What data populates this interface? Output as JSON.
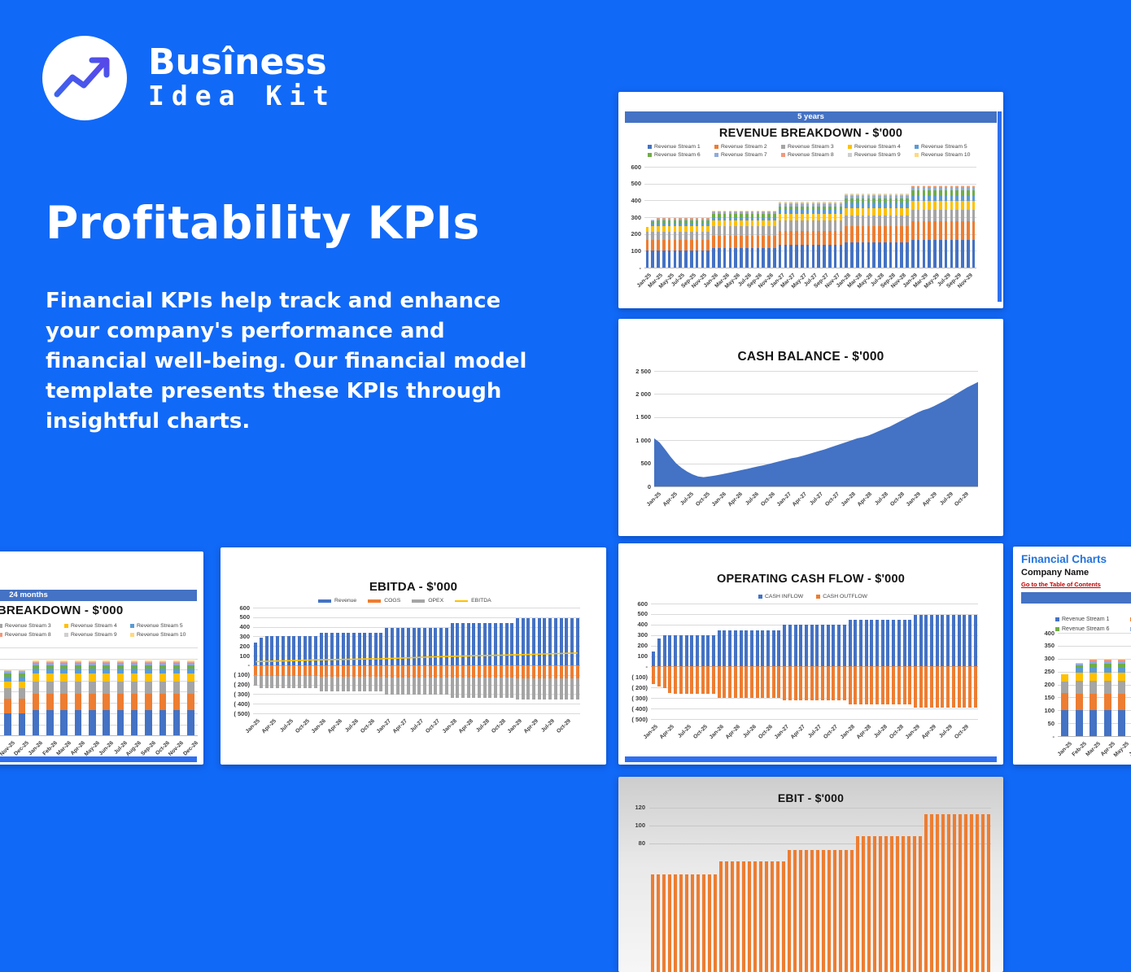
{
  "brand": {
    "line1": "Busîness",
    "line2": "Idea Kit"
  },
  "hero": {
    "title": "Profitability KPIs",
    "description": "Financial KPIs help track and enhance your company's performance and financial well-being. Our financial model template presents these KPIs through insightful charts."
  },
  "colors": {
    "background": "#1169F7",
    "excel_header_bar": "#4472C4",
    "edge_strip": "#2E6FF0",
    "stream_colors": [
      "#4472C4",
      "#ED7D31",
      "#A5A5A5",
      "#FFC000",
      "#5B9BD5",
      "#70AD47",
      "#8FAADC",
      "#F1997B",
      "#CFCFCF",
      "#FFD980"
    ],
    "inflow": "#4472C4",
    "outflow": "#ED7D31",
    "area_fill": "#4472C4",
    "ebitda_line": "#FFC000",
    "ebit_bar": "#ED7D31"
  },
  "streams": [
    "Revenue Stream 1",
    "Revenue Stream 2",
    "Revenue Stream 3",
    "Revenue Stream 4",
    "Revenue Stream 5",
    "Revenue Stream 6",
    "Revenue Stream 7",
    "Revenue Stream 8",
    "Revenue Stream 9",
    "Revenue Stream 10"
  ],
  "cards": {
    "revenue_5y": {
      "header": "5 years",
      "title": "REVENUE BREAKDOWN - $'000"
    },
    "revenue_24m": {
      "header": "24 months",
      "title": "REVENUE BREAKDOWN - $'000"
    },
    "cash_balance": {
      "title": "CASH BALANCE - $'000"
    },
    "ebitda": {
      "title": "EBITDA - $'000"
    },
    "ocf": {
      "title": "OPERATING CASH FLOW - $'000"
    },
    "ebit": {
      "title": "EBIT - $'000"
    },
    "financial_charts": {
      "sheet_title": "Financial Charts",
      "company": "Company Name",
      "link": "Go to the Table of Contents"
    }
  },
  "chart_data": {
    "revenue_5y": {
      "type": "bar",
      "subtype": "stacked",
      "title": "REVENUE BREAKDOWN - $'000",
      "period_header": "5 years",
      "count": 60,
      "ylim": [
        0,
        600
      ],
      "y_ticks": [
        "600",
        "500",
        "400",
        "300",
        "200",
        "100",
        "-"
      ],
      "x_ticks": [
        "Jan-25",
        "Mar-25",
        "May-25",
        "Jul-25",
        "Sep-25",
        "Nov-25",
        "Jan-26",
        "Mar-26",
        "May-26",
        "Jul-26",
        "Sep-26",
        "Nov-26",
        "Jan-27",
        "Mar-27",
        "May-27",
        "Jul-27",
        "Sep-27",
        "Nov-27",
        "Jan-28",
        "Mar-28",
        "May-28",
        "Jul-28",
        "Sep-28",
        "Nov-28",
        "Jan-29",
        "Mar-29",
        "May-29",
        "Jul-29",
        "Sep-29",
        "Nov-29"
      ],
      "tick_every": 2,
      "stacks_by_year": {
        "2025": [
          100,
          65,
          50,
          30,
          20,
          15,
          10,
          5,
          3,
          2
        ],
        "2026": [
          115,
          75,
          55,
          35,
          22,
          16,
          11,
          6,
          3,
          2
        ],
        "2027": [
          135,
          85,
          60,
          40,
          25,
          20,
          14,
          6,
          3,
          2
        ],
        "2028": [
          150,
          95,
          65,
          45,
          30,
          25,
          18,
          7,
          3,
          2
        ],
        "2029": [
          165,
          110,
          70,
          50,
          35,
          28,
          20,
          7,
          3,
          2
        ]
      },
      "overrides": {
        "0": [
          100,
          67,
          45,
          28,
          0,
          0,
          0,
          0,
          0,
          0
        ],
        "1": [
          100,
          65,
          50,
          30,
          20,
          10,
          6,
          3,
          1,
          0
        ]
      },
      "legend_position": "top"
    },
    "revenue_24m": {
      "type": "bar",
      "subtype": "stacked",
      "title": "REVENUE BREAKDOWN - $'000",
      "period_header": "24 months",
      "count": 24,
      "ylim": [
        0,
        400
      ],
      "x_ticks": [
        "Jan-25",
        "Feb-25",
        "Mar-25",
        "Apr-25",
        "May-25",
        "Jun-25",
        "Jul-25",
        "Aug-25",
        "Sep-25",
        "Oct-25",
        "Nov-25",
        "Dec-25",
        "Jan-26",
        "Feb-26",
        "Mar-26",
        "Apr-26",
        "May-26",
        "Jun-26",
        "Jul-26",
        "Aug-26",
        "Sep-26",
        "Oct-26",
        "Nov-26",
        "Dec-26"
      ],
      "tick_every": 1,
      "stacks_by_year": {
        "2025": [
          100,
          65,
          50,
          30,
          20,
          15,
          10,
          5,
          3,
          2
        ],
        "2026": [
          115,
          75,
          55,
          35,
          22,
          16,
          11,
          6,
          3,
          2
        ]
      },
      "overrides": {
        "0": [
          100,
          67,
          45,
          28,
          0,
          0,
          0,
          0,
          0,
          0
        ],
        "1": [
          100,
          65,
          50,
          30,
          20,
          10,
          6,
          3,
          1,
          0
        ]
      }
    },
    "financial_charts_24m": {
      "type": "bar",
      "subtype": "stacked",
      "count": 24,
      "ylim": [
        0,
        400
      ],
      "y_ticks": [
        "400",
        "350",
        "300",
        "250",
        "200",
        "150",
        "100",
        "50",
        "-"
      ],
      "x_ticks": [
        "Jan-25",
        "Feb-25",
        "Mar-25",
        "Apr-25",
        "May-25",
        "Jun-25",
        "Jul-25",
        "Aug-25",
        "Sep-25",
        "Oct-25",
        "Nov-25",
        "Dec-25",
        "Jan-26",
        "Feb-26",
        "Mar-26",
        "Apr-26",
        "May-26",
        "Jun-26",
        "Jul-26",
        "Aug-26",
        "Sep-26",
        "Oct-26",
        "Nov-26",
        "Dec-26"
      ],
      "tick_every": 1,
      "stacks_by_year": {
        "2025": [
          100,
          65,
          50,
          30,
          20,
          15,
          10,
          5,
          3,
          2
        ],
        "2026": [
          115,
          75,
          55,
          35,
          22,
          16,
          11,
          6,
          3,
          2
        ]
      },
      "overrides": {
        "0": [
          100,
          67,
          45,
          28,
          0,
          0,
          0,
          0,
          0,
          0
        ],
        "1": [
          100,
          65,
          50,
          30,
          20,
          10,
          6,
          3,
          1,
          0
        ]
      }
    },
    "cash_balance": {
      "type": "area",
      "title": "CASH BALANCE - $'000",
      "ylim": [
        0,
        2500
      ],
      "y_ticks": [
        "2 500",
        "2 000",
        "1 500",
        "1 000",
        "500",
        "0"
      ],
      "x_ticks": [
        "Jan-25",
        "Apr-25",
        "Jul-25",
        "Oct-25",
        "Jan-26",
        "Apr-26",
        "Jul-26",
        "Oct-26",
        "Jan-27",
        "Apr-27",
        "Jul-27",
        "Oct-27",
        "Jan-28",
        "Apr-28",
        "Jul-28",
        "Oct-28",
        "Jan-29",
        "Apr-29",
        "Jul-29",
        "Oct-29"
      ],
      "values": [
        1040,
        950,
        800,
        640,
        500,
        400,
        320,
        260,
        215,
        200,
        215,
        235,
        255,
        280,
        305,
        330,
        355,
        380,
        410,
        435,
        460,
        490,
        520,
        550,
        580,
        610,
        630,
        660,
        695,
        730,
        765,
        800,
        840,
        880,
        920,
        960,
        1000,
        1040,
        1065,
        1100,
        1150,
        1200,
        1250,
        1300,
        1360,
        1420,
        1480,
        1540,
        1600,
        1650,
        1685,
        1740,
        1800,
        1860,
        1930,
        2000,
        2070,
        2140,
        2200,
        2260
      ]
    },
    "ebitda": {
      "type": "bar",
      "subtype": "positive-negative-with-line",
      "title": "EBITDA - $'000",
      "count": 60,
      "ylim": [
        -500,
        600
      ],
      "y_ticks": [
        "600",
        "500",
        "400",
        "300",
        "200",
        "100",
        "-",
        "( 100)",
        "( 200)",
        "( 300)",
        "( 400)",
        "( 500)"
      ],
      "x_ticks": [
        "Jan-25",
        "Apr-25",
        "Jul-25",
        "Oct-25",
        "Jan-26",
        "Apr-26",
        "Jul-26",
        "Oct-26",
        "Jan-27",
        "Apr-27",
        "Jul-27",
        "Oct-27",
        "Jan-28",
        "Apr-28",
        "Jul-28",
        "Oct-28",
        "Jan-29",
        "Apr-29",
        "Jul-29",
        "Oct-29"
      ],
      "tick_every": 3,
      "legend": [
        {
          "label": "Revenue",
          "color": "#4472C4",
          "swatch": "bar"
        },
        {
          "label": "COGS",
          "color": "#ED7D31",
          "swatch": "bar"
        },
        {
          "label": "OPEX",
          "color": "#A5A5A5",
          "swatch": "bar"
        },
        {
          "label": "EBITDA",
          "color": "#FFC000",
          "swatch": "line"
        }
      ],
      "revenue_by_year": {
        "2025": 300,
        "2026": 340,
        "2027": 390,
        "2028": 440,
        "2029": 490
      },
      "revenue_overrides": {
        "0": 240,
        "1": 285
      },
      "cogs_by_year": {
        "2025": -110,
        "2026": -120,
        "2027": -125,
        "2028": -130,
        "2029": -135
      },
      "cogs_overrides": {
        "0": -105
      },
      "opex_by_year": {
        "2025": -130,
        "2026": -150,
        "2027": -180,
        "2028": -210,
        "2029": -225
      },
      "opex_overrides": {
        "0": -105
      },
      "ebitda_line_points": [
        [
          0,
          38
        ],
        [
          11,
          56
        ],
        [
          23,
          68
        ],
        [
          35,
          92
        ],
        [
          47,
          108
        ],
        [
          59,
          128
        ]
      ]
    },
    "operating_cash_flow": {
      "type": "bar",
      "subtype": "positive-negative",
      "title": "OPERATING CASH FLOW - $'000",
      "count": 60,
      "ylim": [
        -500,
        600
      ],
      "y_ticks": [
        "600",
        "500",
        "400",
        "300",
        "200",
        "100",
        "-",
        "( 100)",
        "( 200)",
        "( 300)",
        "( 400)",
        "( 500)"
      ],
      "x_ticks": [
        "Jan-25",
        "Apr-25",
        "Jul-25",
        "Oct-25",
        "Jan-26",
        "Apr-26",
        "Jul-26",
        "Oct-26",
        "Jan-27",
        "Apr-27",
        "Jul-27",
        "Oct-27",
        "Jan-28",
        "Apr-28",
        "Jul-28",
        "Oct-28",
        "Jan-29",
        "Apr-29",
        "Jul-29",
        "Oct-29"
      ],
      "tick_every": 3,
      "legend": [
        {
          "label": "CASH INFLOW",
          "color": "#4472C4",
          "swatch": "square"
        },
        {
          "label": "CASH OUTFLOW",
          "color": "#ED7D31",
          "swatch": "square"
        }
      ],
      "inflow_by_year": {
        "2025": 300,
        "2026": 345,
        "2027": 395,
        "2028": 445,
        "2029": 490
      },
      "inflow_overrides": {
        "0": 145,
        "1": 270
      },
      "outflow_by_year": {
        "2025": -262,
        "2026": -295,
        "2027": -322,
        "2028": -360,
        "2029": -388
      },
      "outflow_overrides": {
        "0": -165,
        "1": -190,
        "2": -205,
        "3": -250
      }
    },
    "ebit": {
      "type": "bar",
      "title": "EBIT - $'000",
      "count": 60,
      "ylim_visible": [
        75,
        125
      ],
      "y_ticks": [
        "120",
        "100",
        "80"
      ],
      "values_by_year": {
        "2025": 45,
        "2026": 60,
        "2027": 72,
        "2028": 88,
        "2029": 112
      }
    }
  }
}
